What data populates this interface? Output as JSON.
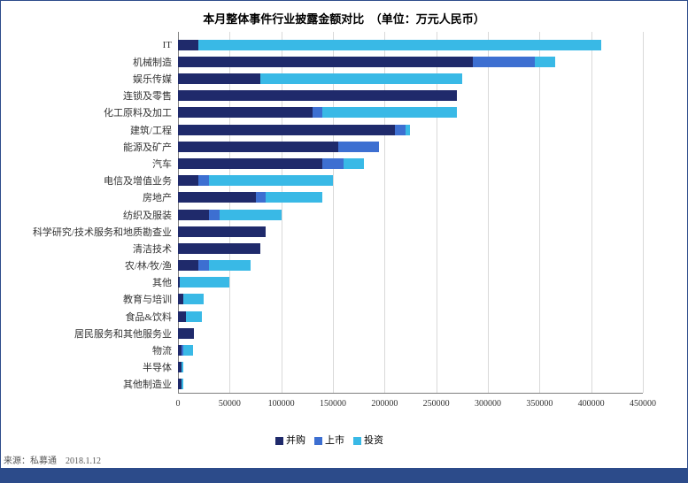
{
  "chart": {
    "type": "stacked-horizontal-bar",
    "title": "本月整体事件行业披露金额对比　（单位：万元人民币）",
    "title_fontsize": 13,
    "label_fontsize": 11,
    "tick_fontsize": 10,
    "background_color": "#ffffff",
    "border_color": "#2c4b8a",
    "grid_color": "#d9d9d9",
    "axis_color": "#808080",
    "x_max": 450000,
    "x_tick_step": 50000,
    "x_ticks": [
      0,
      50000,
      100000,
      150000,
      200000,
      250000,
      300000,
      350000,
      400000,
      450000
    ],
    "categories": [
      "IT",
      "机械制造",
      "娱乐传媒",
      "连锁及零售",
      "化工原料及加工",
      "建筑/工程",
      "能源及矿产",
      "汽车",
      "电信及增值业务",
      "房地产",
      "纺织及服装",
      "科学研究/技术服务和地质勘查业",
      "清洁技术",
      "农/林/牧/渔",
      "其他",
      "教育与培训",
      "食品&饮料",
      "居民服务和其他服务业",
      "物流",
      "半导体",
      "其他制造业"
    ],
    "series": [
      {
        "name": "并购",
        "color": "#1f2a6b",
        "values": [
          20000,
          285000,
          80000,
          270000,
          130000,
          210000,
          155000,
          140000,
          20000,
          75000,
          30000,
          85000,
          80000,
          20000,
          2000,
          5000,
          8000,
          15000,
          3000,
          3000,
          3000
        ]
      },
      {
        "name": "上市",
        "color": "#3d6fd1",
        "values": [
          0,
          60000,
          0,
          0,
          10000,
          10000,
          40000,
          20000,
          10000,
          10000,
          10000,
          0,
          0,
          10000,
          0,
          0,
          0,
          0,
          2000,
          0,
          0
        ]
      },
      {
        "name": "投资",
        "color": "#39b9e6",
        "values": [
          390000,
          20000,
          195000,
          0,
          130000,
          5000,
          0,
          20000,
          120000,
          55000,
          60000,
          0,
          0,
          40000,
          48000,
          20000,
          15000,
          0,
          10000,
          2000,
          2000
        ]
      }
    ],
    "legend": [
      "并购",
      "上市",
      "投资"
    ]
  },
  "source": "来源：私募通　2018.1.12"
}
